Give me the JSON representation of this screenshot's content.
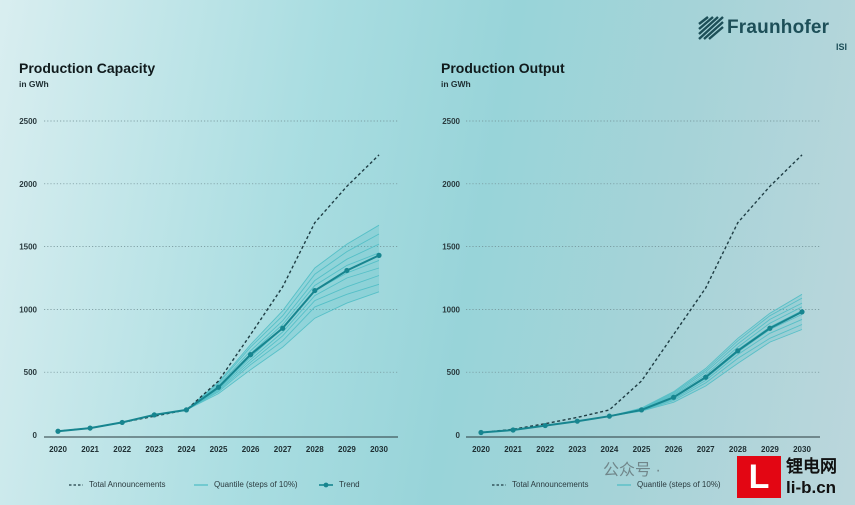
{
  "brand": {
    "name": "Fraunhofer",
    "sub": "ISI",
    "color": "#1d4f58"
  },
  "watermark": {
    "text": "公众号 ·",
    "site_top": "锂电网",
    "site_bottom": "li-b.cn"
  },
  "colors": {
    "announcements": "#1f3d44",
    "quantile": "#4bbcc4",
    "trend": "#17858f"
  },
  "chart_data": [
    {
      "type": "line",
      "title": "Production Capacity",
      "unit": "in GWh",
      "x": [
        2020,
        2021,
        2022,
        2023,
        2024,
        2025,
        2026,
        2027,
        2028,
        2029,
        2030
      ],
      "yticks": [
        0,
        500,
        1000,
        1500,
        2000,
        2500
      ],
      "ylim": [
        0,
        2500
      ],
      "series": [
        {
          "name": "Total Announcements",
          "style": "dashed",
          "values": [
            30,
            55,
            100,
            150,
            200,
            430,
            800,
            1180,
            1690,
            1980,
            2230
          ]
        },
        {
          "name": "Trend",
          "style": "line-marker",
          "values": [
            30,
            55,
            100,
            160,
            200,
            380,
            640,
            850,
            1150,
            1310,
            1430
          ]
        }
      ],
      "quantiles": [
        {
          "label": "Q1",
          "values": [
            30,
            55,
            100,
            160,
            200,
            330,
            520,
            700,
            930,
            1050,
            1140
          ]
        },
        {
          "label": "Q2",
          "values": [
            30,
            55,
            100,
            160,
            200,
            345,
            560,
            750,
            1020,
            1120,
            1200
          ]
        },
        {
          "label": "Q3",
          "values": [
            30,
            55,
            100,
            160,
            200,
            355,
            580,
            790,
            1070,
            1180,
            1270
          ]
        },
        {
          "label": "Q4",
          "values": [
            30,
            55,
            100,
            160,
            200,
            365,
            600,
            820,
            1110,
            1250,
            1330
          ]
        },
        {
          "label": "Q5",
          "values": [
            30,
            55,
            100,
            160,
            200,
            372,
            620,
            850,
            1150,
            1290,
            1390
          ]
        },
        {
          "label": "Q6",
          "values": [
            30,
            55,
            100,
            160,
            200,
            385,
            650,
            880,
            1190,
            1350,
            1450
          ]
        },
        {
          "label": "Q7",
          "values": [
            30,
            55,
            100,
            160,
            200,
            395,
            670,
            910,
            1230,
            1400,
            1520
          ]
        },
        {
          "label": "Q8",
          "values": [
            30,
            55,
            100,
            160,
            200,
            410,
            700,
            950,
            1280,
            1460,
            1600
          ]
        },
        {
          "label": "Q9",
          "values": [
            30,
            55,
            100,
            160,
            200,
            420,
            720,
            990,
            1330,
            1520,
            1670
          ]
        }
      ],
      "legend": [
        "Total Announcements",
        "Quantile (steps of 10%)",
        "Trend"
      ]
    },
    {
      "type": "line",
      "title": "Production Output",
      "unit": "in GWh",
      "x": [
        2020,
        2021,
        2022,
        2023,
        2024,
        2025,
        2026,
        2027,
        2028,
        2029,
        2030
      ],
      "yticks": [
        0,
        500,
        1000,
        1500,
        2000,
        2500
      ],
      "ylim": [
        0,
        2500
      ],
      "series": [
        {
          "name": "Total Announcements",
          "style": "dashed",
          "values": [
            20,
            45,
            90,
            140,
            200,
            430,
            800,
            1170,
            1690,
            1980,
            2230
          ]
        },
        {
          "name": "Trend",
          "style": "line-marker",
          "values": [
            20,
            40,
            75,
            110,
            150,
            200,
            300,
            460,
            670,
            850,
            980
          ]
        }
      ],
      "quantiles": [
        {
          "label": "Q1",
          "values": [
            20,
            40,
            75,
            110,
            150,
            190,
            260,
            390,
            570,
            740,
            840
          ]
        },
        {
          "label": "Q2",
          "values": [
            20,
            40,
            75,
            110,
            150,
            193,
            275,
            415,
            610,
            770,
            880
          ]
        },
        {
          "label": "Q3",
          "values": [
            20,
            40,
            75,
            110,
            150,
            196,
            285,
            435,
            640,
            810,
            920
          ]
        },
        {
          "label": "Q4",
          "values": [
            20,
            40,
            75,
            110,
            150,
            198,
            295,
            450,
            660,
            840,
            960
          ]
        },
        {
          "label": "Q5",
          "values": [
            20,
            40,
            75,
            110,
            150,
            200,
            305,
            465,
            680,
            860,
            990
          ]
        },
        {
          "label": "Q6",
          "values": [
            20,
            40,
            75,
            110,
            150,
            203,
            315,
            480,
            700,
            890,
            1020
          ]
        },
        {
          "label": "Q7",
          "values": [
            20,
            40,
            75,
            110,
            150,
            206,
            325,
            500,
            725,
            920,
            1050
          ]
        },
        {
          "label": "Q8",
          "values": [
            20,
            40,
            75,
            110,
            150,
            210,
            335,
            515,
            750,
            950,
            1090
          ]
        },
        {
          "label": "Q9",
          "values": [
            20,
            40,
            75,
            110,
            150,
            215,
            345,
            530,
            770,
            970,
            1120
          ]
        }
      ],
      "legend": [
        "Total Announcements",
        "Quantile (steps of 10%)"
      ]
    }
  ]
}
